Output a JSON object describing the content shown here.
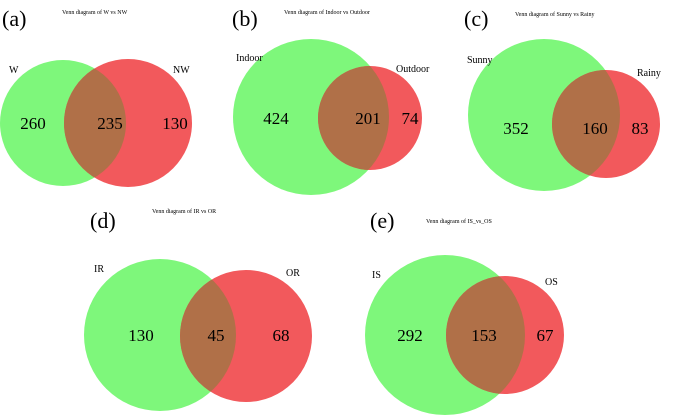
{
  "colors": {
    "left_circle": "#7ef77b",
    "right_circle": "#f2595c",
    "overlap": "#b07048"
  },
  "panels": [
    {
      "id": "a",
      "letter": "(a)",
      "title": "Venn diagram of W  vs  NW",
      "left_label": "W",
      "right_label": "NW",
      "left_only": "260",
      "both": "235",
      "right_only": "130"
    },
    {
      "id": "b",
      "letter": "(b)",
      "title": "Venn diagram of Indoor  vs  Outdoor",
      "left_label": "Indoor",
      "right_label": "Outdoor",
      "left_only": "424",
      "both": "201",
      "right_only": "74"
    },
    {
      "id": "c",
      "letter": "(c)",
      "title": "Venn diagram of Sunny  vs  Rainy",
      "left_label": "Sunny",
      "right_label": "Rainy",
      "left_only": "352",
      "both": "160",
      "right_only": "83"
    },
    {
      "id": "d",
      "letter": "(d)",
      "title": "Venn diagram of IR  vs  OR",
      "left_label": "IR",
      "right_label": "OR",
      "left_only": "130",
      "both": "45",
      "right_only": "68"
    },
    {
      "id": "e",
      "letter": "(e)",
      "title": "Venn diagram of IS_vs_OS",
      "left_label": "IS",
      "right_label": "OS",
      "left_only": "292",
      "both": "153",
      "right_only": "67"
    }
  ]
}
